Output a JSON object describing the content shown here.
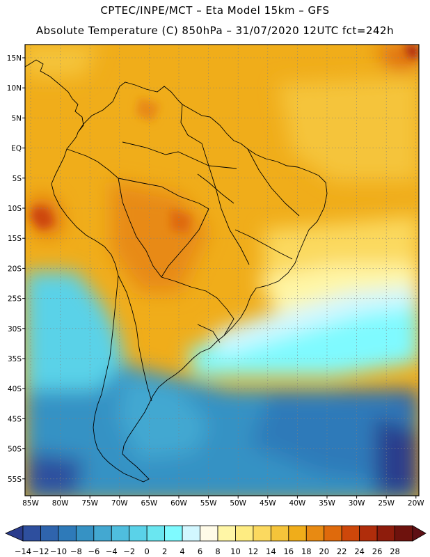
{
  "header": {
    "line1": "CPTEC/INPE/MCT –  Eta Model 15km – GFS",
    "line2": "Absolute Temperature (C) 850hPa – 31/07/2020 12UTC fct=242h"
  },
  "map": {
    "lat_labels": [
      "15N",
      "10N",
      "5N",
      "EQ",
      "5S",
      "10S",
      "15S",
      "20S",
      "25S",
      "30S",
      "35S",
      "40S",
      "45S",
      "50S",
      "55S"
    ],
    "lon_labels": [
      "85W",
      "80W",
      "75W",
      "70W",
      "65W",
      "60W",
      "55W",
      "50W",
      "45W",
      "40W",
      "35W",
      "30W",
      "25W",
      "20W"
    ],
    "colors": {
      "land_line": "#000000",
      "grid": "#808080",
      "frame": "#000000"
    }
  },
  "colorbar": {
    "tick_labels": [
      "-14",
      "-12",
      "-10",
      "-8",
      "-6",
      "-4",
      "-2",
      "0",
      "2",
      "4",
      "6",
      "8",
      "10",
      "12",
      "14",
      "16",
      "18",
      "20",
      "22",
      "24",
      "26",
      "28"
    ],
    "colors": [
      "#2a3c8c",
      "#2e4f9e",
      "#2f64ad",
      "#2e7ab9",
      "#3692c4",
      "#43a8d1",
      "#4fbede",
      "#5ad2e8",
      "#6ae6f0",
      "#7ffaff",
      "#d2f7ff",
      "#fffbe8",
      "#fff6a6",
      "#feec82",
      "#fbd95f",
      "#f5c43a",
      "#f0ad1a",
      "#e88a12",
      "#df6a0c",
      "#cd470a",
      "#b02d0b",
      "#8e1c0c",
      "#6e120d",
      "#5e0f14"
    ]
  }
}
